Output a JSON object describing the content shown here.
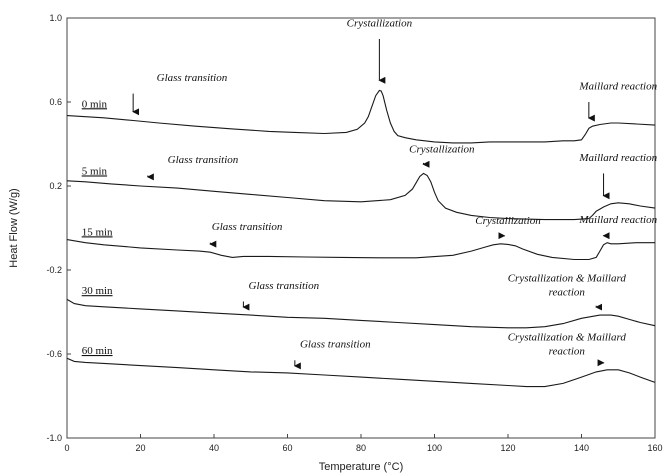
{
  "chart_data": {
    "type": "line",
    "xlabel": "Temperature (°C)",
    "ylabel": "Heat Flow (W/g)",
    "xlim": [
      0,
      160
    ],
    "ylim": [
      -1.0,
      1.0
    ],
    "xticks": [
      0,
      20,
      40,
      60,
      80,
      100,
      120,
      140,
      160
    ],
    "yticks": [
      1.0,
      0.6,
      0.2,
      -0.2,
      -0.6,
      -1.0
    ],
    "xtick_labels": [
      "0",
      "20",
      "40",
      "60",
      "80",
      "100",
      "120",
      "140",
      "160"
    ],
    "ytick_labels": [
      "1.0",
      "0.6",
      "0.2",
      "-0.2",
      "-0.6",
      "-1.0"
    ],
    "grid": false,
    "series": [
      {
        "name": "0 min",
        "x": [
          0,
          5,
          10,
          18,
          25,
          35,
          45,
          55,
          62,
          70,
          76,
          79,
          81,
          82,
          83,
          84,
          85,
          85.5,
          86,
          87,
          88,
          89,
          90,
          92,
          95,
          100,
          105,
          110,
          115,
          120,
          125,
          130,
          135,
          138,
          140,
          141,
          142,
          143,
          145,
          148,
          150,
          155,
          160
        ],
        "y": [
          0.535,
          0.53,
          0.525,
          0.512,
          0.5,
          0.485,
          0.472,
          0.46,
          0.455,
          0.45,
          0.455,
          0.47,
          0.5,
          0.53,
          0.58,
          0.63,
          0.655,
          0.652,
          0.63,
          0.56,
          0.5,
          0.46,
          0.44,
          0.43,
          0.42,
          0.41,
          0.405,
          0.405,
          0.41,
          0.41,
          0.41,
          0.41,
          0.415,
          0.415,
          0.42,
          0.445,
          0.475,
          0.485,
          0.493,
          0.5,
          0.5,
          0.495,
          0.49
        ]
      },
      {
        "name": "5 min",
        "x": [
          0,
          5,
          12,
          20,
          30,
          40,
          50,
          60,
          70,
          80,
          88,
          92,
          94,
          95,
          96,
          97,
          98,
          99,
          100,
          101,
          103,
          106,
          110,
          115,
          120,
          130,
          138,
          142,
          143,
          144,
          145,
          146,
          148,
          150,
          153,
          156,
          160
        ],
        "y": [
          0.225,
          0.22,
          0.21,
          0.2,
          0.19,
          0.175,
          0.16,
          0.145,
          0.13,
          0.125,
          0.135,
          0.155,
          0.185,
          0.215,
          0.245,
          0.26,
          0.25,
          0.22,
          0.17,
          0.13,
          0.095,
          0.075,
          0.06,
          0.05,
          0.045,
          0.04,
          0.04,
          0.045,
          0.06,
          0.08,
          0.09,
          0.1,
          0.115,
          0.12,
          0.115,
          0.105,
          0.095
        ]
      },
      {
        "name": "15 min",
        "x": [
          0,
          5,
          10,
          20,
          30,
          36,
          39,
          42,
          45,
          48,
          55,
          65,
          75,
          85,
          95,
          105,
          110,
          114,
          116,
          118,
          120,
          122,
          124,
          128,
          132,
          138,
          142,
          144,
          145,
          146,
          147,
          148,
          150,
          155,
          160
        ],
        "y": [
          -0.055,
          -0.07,
          -0.08,
          -0.095,
          -0.105,
          -0.11,
          -0.115,
          -0.13,
          -0.14,
          -0.135,
          -0.135,
          -0.138,
          -0.14,
          -0.142,
          -0.142,
          -0.13,
          -0.11,
          -0.09,
          -0.08,
          -0.075,
          -0.078,
          -0.085,
          -0.1,
          -0.125,
          -0.14,
          -0.15,
          -0.15,
          -0.14,
          -0.11,
          -0.08,
          -0.07,
          -0.075,
          -0.075,
          -0.07,
          -0.07
        ]
      },
      {
        "name": "30 min",
        "x": [
          0,
          2,
          5,
          10,
          20,
          30,
          40,
          50,
          60,
          70,
          80,
          90,
          100,
          110,
          120,
          125,
          130,
          135,
          140,
          145,
          148,
          150,
          153,
          156,
          160
        ],
        "y": [
          -0.34,
          -0.36,
          -0.37,
          -0.375,
          -0.385,
          -0.395,
          -0.405,
          -0.415,
          -0.425,
          -0.43,
          -0.44,
          -0.45,
          -0.46,
          -0.47,
          -0.475,
          -0.475,
          -0.47,
          -0.455,
          -0.43,
          -0.415,
          -0.415,
          -0.42,
          -0.435,
          -0.45,
          -0.465
        ]
      },
      {
        "name": "60 min",
        "x": [
          0,
          2,
          5,
          10,
          20,
          30,
          40,
          50,
          60,
          70,
          80,
          90,
          100,
          110,
          120,
          125,
          130,
          135,
          140,
          144,
          147,
          150,
          153,
          156,
          160
        ],
        "y": [
          -0.62,
          -0.635,
          -0.64,
          -0.645,
          -0.655,
          -0.665,
          -0.675,
          -0.685,
          -0.69,
          -0.7,
          -0.71,
          -0.72,
          -0.73,
          -0.74,
          -0.75,
          -0.755,
          -0.755,
          -0.74,
          -0.71,
          -0.685,
          -0.675,
          -0.675,
          -0.69,
          -0.71,
          -0.735
        ]
      }
    ],
    "curve_labels": [
      {
        "text": "0 min",
        "x": 4,
        "y": 0.575
      },
      {
        "text": "5 min",
        "x": 4,
        "y": 0.255
      },
      {
        "text": "15 min",
        "x": 4,
        "y": -0.035
      },
      {
        "text": "30 min",
        "x": 4,
        "y": -0.315
      },
      {
        "text": "60 min",
        "x": 4,
        "y": -0.6
      }
    ],
    "annotations": [
      {
        "lines": [
          "Glass transition"
        ],
        "label_x": 34,
        "label_y": 0.7,
        "arrow_x": 18,
        "arrow_from": 0.64,
        "arrow_to": 0.52
      },
      {
        "lines": [
          "Crystallization"
        ],
        "label_x": 85,
        "label_y": 0.96,
        "arrow_x": 85,
        "arrow_from": 0.9,
        "arrow_to": 0.67
      },
      {
        "lines": [
          "Maillard reaction"
        ],
        "label_x": 150,
        "label_y": 0.66,
        "arrow_x": 142,
        "arrow_from": 0.6,
        "arrow_to": 0.49
      },
      {
        "lines": [
          "Glass transition"
        ],
        "label_x": 37,
        "label_y": 0.31,
        "arrow_x": 22,
        "arrow_from": 0.25,
        "arrow_to": 0.21
      },
      {
        "lines": [
          "Crystallization"
        ],
        "label_x": 102,
        "label_y": 0.36,
        "arrow_x": 97,
        "arrow_from": 0.31,
        "arrow_to": 0.27
      },
      {
        "lines": [
          "Maillard reaction"
        ],
        "label_x": 150,
        "label_y": 0.32,
        "arrow_x": 146,
        "arrow_from": 0.26,
        "arrow_to": 0.12
      },
      {
        "lines": [
          "Glass transition"
        ],
        "label_x": 49,
        "label_y": -0.01,
        "arrow_x": 39,
        "arrow_from": -0.07,
        "arrow_to": -0.11
      },
      {
        "lines": [
          "Crystallization"
        ],
        "label_x": 120,
        "label_y": 0.02,
        "arrow_x": 119,
        "arrow_from": -0.04,
        "arrow_to": -0.07
      },
      {
        "lines": [
          "Maillard reaction"
        ],
        "label_x": 150,
        "label_y": 0.025,
        "arrow_x": 146,
        "arrow_from": -0.035,
        "arrow_to": -0.07
      },
      {
        "lines": [
          "Glass transition"
        ],
        "label_x": 59,
        "label_y": -0.29,
        "arrow_x": 48,
        "arrow_from": -0.35,
        "arrow_to": -0.41
      },
      {
        "lines": [
          "Crystallization & Maillard",
          "reaction"
        ],
        "label_x": 136,
        "label_y": -0.255,
        "arrow_x": 144,
        "arrow_from": -0.37,
        "arrow_to": -0.41
      },
      {
        "lines": [
          "Glass transition"
        ],
        "label_x": 73,
        "label_y": -0.57,
        "arrow_x": 62,
        "arrow_from": -0.63,
        "arrow_to": -0.69
      },
      {
        "lines": [
          "Crystallization & Maillard",
          "reaction"
        ],
        "label_x": 136,
        "label_y": -0.535,
        "arrow_x": 146,
        "arrow_from": -0.645,
        "arrow_to": -0.675
      }
    ]
  }
}
